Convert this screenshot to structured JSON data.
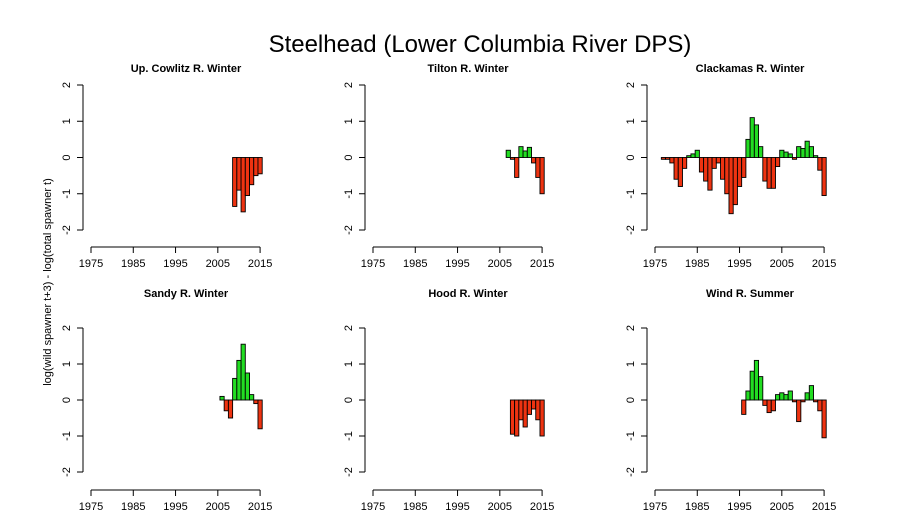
{
  "figure": {
    "title": "Steelhead (Lower Columbia River DPS)",
    "ylabel": "log(wild spawner t+3) - log(total spawner t)"
  },
  "colors": {
    "positive": "#22dd22",
    "negative": "#ee3311",
    "stroke": "#000000"
  },
  "chart_data": [
    {
      "type": "bar",
      "title": "Up. Cowlitz R. Winter",
      "xlim": [
        1975,
        2019
      ],
      "ylim": [
        -2,
        2
      ],
      "xticks": [
        1975,
        1985,
        1995,
        2005,
        2015
      ],
      "yticks": [
        -2,
        -1,
        0,
        1,
        2
      ],
      "x": [
        2009,
        2010,
        2011,
        2012,
        2013,
        2014,
        2015
      ],
      "values": [
        -1.35,
        -0.9,
        -1.5,
        -1.05,
        -0.75,
        -0.5,
        -0.45
      ]
    },
    {
      "type": "bar",
      "title": "Tilton R. Winter",
      "xlim": [
        1975,
        2019
      ],
      "ylim": [
        -2,
        2
      ],
      "xticks": [
        1975,
        1985,
        1995,
        2005,
        2015
      ],
      "yticks": [
        -2,
        -1,
        0,
        1,
        2
      ],
      "x": [
        2007,
        2008,
        2009,
        2010,
        2011,
        2012,
        2013,
        2014,
        2015
      ],
      "values": [
        0.2,
        -0.05,
        -0.55,
        0.3,
        0.18,
        0.28,
        -0.15,
        -0.55,
        -1.0
      ]
    },
    {
      "type": "bar",
      "title": "Clackamas R. Winter",
      "xlim": [
        1975,
        2019
      ],
      "ylim": [
        -2,
        2
      ],
      "xticks": [
        1975,
        1985,
        1995,
        2005,
        2015
      ],
      "yticks": [
        -2,
        -1,
        0,
        1,
        2
      ],
      "x": [
        1977,
        1978,
        1979,
        1980,
        1981,
        1982,
        1983,
        1984,
        1985,
        1986,
        1987,
        1988,
        1989,
        1990,
        1991,
        1992,
        1993,
        1994,
        1995,
        1996,
        1997,
        1998,
        1999,
        2000,
        2001,
        2002,
        2003,
        2004,
        2005,
        2006,
        2007,
        2008,
        2009,
        2010,
        2011,
        2012,
        2013,
        2014,
        2015
      ],
      "values": [
        -0.05,
        -0.05,
        -0.15,
        -0.6,
        -0.8,
        -0.3,
        0.05,
        0.1,
        0.2,
        -0.4,
        -0.65,
        -0.9,
        -0.3,
        -0.15,
        -0.6,
        -1.0,
        -1.55,
        -1.3,
        -0.8,
        -0.55,
        0.5,
        1.1,
        0.9,
        0.3,
        -0.65,
        -0.85,
        -0.85,
        -0.25,
        0.2,
        0.15,
        0.1,
        -0.05,
        0.3,
        0.25,
        0.45,
        0.3,
        0.05,
        -0.35,
        -1.05
      ]
    },
    {
      "type": "bar",
      "title": "Sandy R. Winter",
      "xlim": [
        1975,
        2019
      ],
      "ylim": [
        -2,
        2
      ],
      "xticks": [
        1975,
        1985,
        1995,
        2005,
        2015
      ],
      "yticks": [
        -2,
        -1,
        0,
        1,
        2
      ],
      "x": [
        2006,
        2007,
        2008,
        2009,
        2010,
        2011,
        2012,
        2013,
        2014,
        2015
      ],
      "values": [
        0.1,
        -0.3,
        -0.5,
        0.6,
        1.1,
        1.55,
        0.75,
        0.15,
        -0.1,
        -0.8
      ]
    },
    {
      "type": "bar",
      "title": "Hood R. Winter",
      "xlim": [
        1975,
        2019
      ],
      "ylim": [
        -2,
        2
      ],
      "xticks": [
        1975,
        1985,
        1995,
        2005,
        2015
      ],
      "yticks": [
        -2,
        -1,
        0,
        1,
        2
      ],
      "x": [
        2008,
        2009,
        2010,
        2011,
        2012,
        2013,
        2014,
        2015
      ],
      "values": [
        -0.95,
        -1.0,
        -0.55,
        -0.75,
        -0.4,
        -0.25,
        -0.55,
        -1.0
      ]
    },
    {
      "type": "bar",
      "title": "Wind R. Summer",
      "xlim": [
        1975,
        2019
      ],
      "ylim": [
        -2,
        2
      ],
      "xticks": [
        1975,
        1985,
        1995,
        2005,
        2015
      ],
      "yticks": [
        -2,
        -1,
        0,
        1,
        2
      ],
      "x": [
        1996,
        1997,
        1998,
        1999,
        2000,
        2001,
        2002,
        2003,
        2004,
        2005,
        2006,
        2007,
        2008,
        2009,
        2010,
        2011,
        2012,
        2013,
        2014,
        2015
      ],
      "values": [
        -0.4,
        0.25,
        0.8,
        1.1,
        0.65,
        -0.15,
        -0.35,
        -0.3,
        0.15,
        0.2,
        0.15,
        0.25,
        -0.05,
        -0.6,
        -0.05,
        0.2,
        0.4,
        -0.05,
        -0.3,
        -1.05
      ]
    }
  ]
}
